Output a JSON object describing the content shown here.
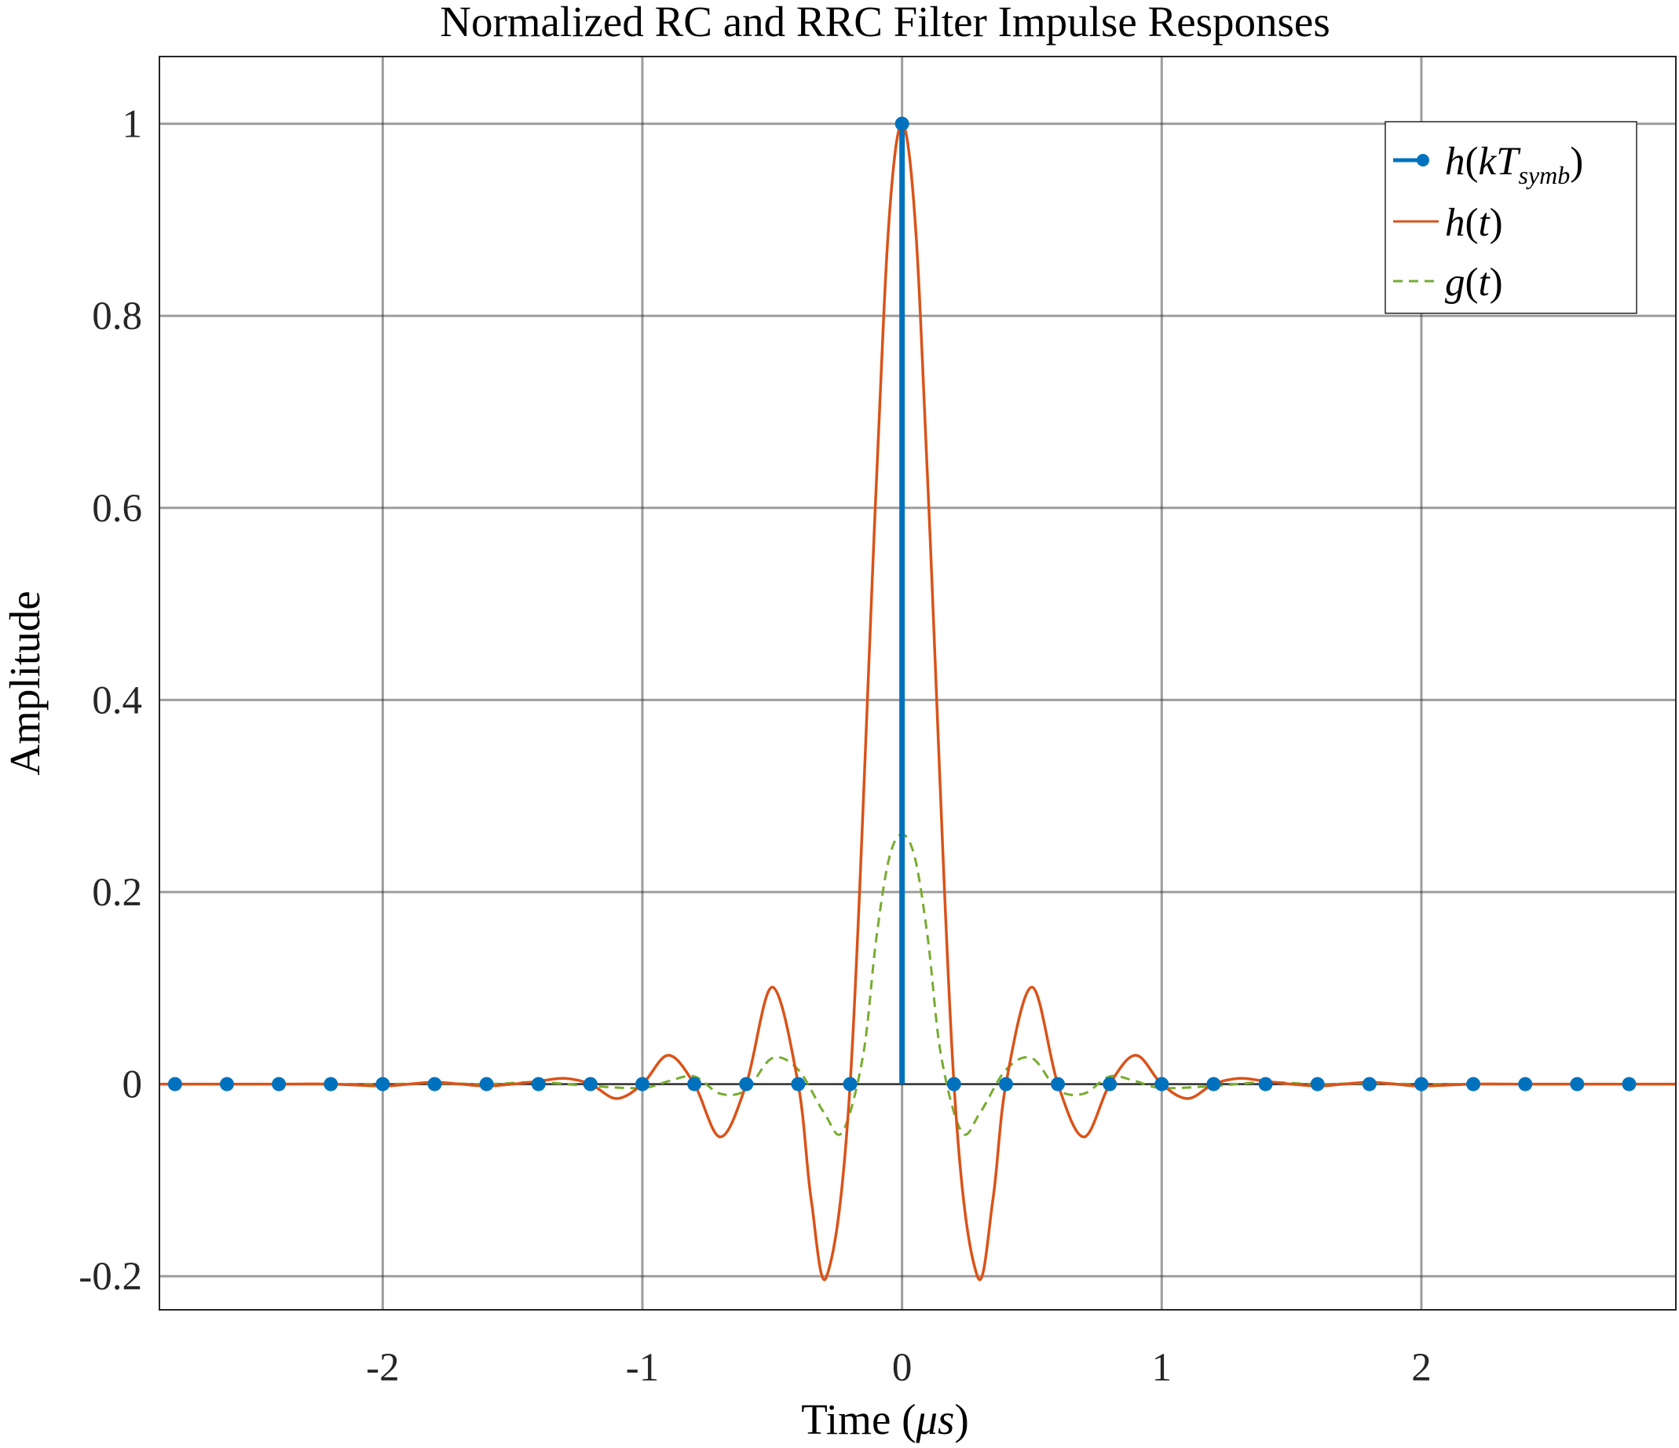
{
  "chart_data": {
    "type": "line",
    "title": "Normalized RC and RRC Filter Impulse Responses",
    "xlabel_text": "Time (",
    "xlabel_unit": "μs",
    "xlabel_close": ")",
    "ylabel": "Amplitude",
    "xlim": [
      -2.86,
      2.98
    ],
    "ylim": [
      -0.235,
      1.07
    ],
    "xticks": [
      -2,
      -1,
      0,
      1,
      2
    ],
    "xtick_labels": [
      "-2",
      "-1",
      "0",
      "1",
      "2"
    ],
    "yticks": [
      -0.2,
      0,
      0.2,
      0.4,
      0.6,
      0.8,
      1
    ],
    "ytick_labels": [
      "-0.2",
      "0",
      "0.2",
      "0.4",
      "0.6",
      "0.8",
      "1"
    ],
    "grid": true,
    "legend_position": "top-right",
    "series": [
      {
        "name": "h(kT_symb)",
        "legend": {
          "h": "h",
          "open": "(",
          "k": "kT",
          "sub": "symb",
          "close": ")"
        },
        "kind": "stem",
        "color": "#0072BD",
        "x": [
          -2.8,
          -2.6,
          -2.4,
          -2.2,
          -2.0,
          -1.8,
          -1.6,
          -1.4,
          -1.2,
          -1.0,
          -0.8,
          -0.6,
          -0.4,
          -0.2,
          0.0,
          0.2,
          0.4,
          0.6,
          0.8,
          1.0,
          1.2,
          1.4,
          1.6,
          1.8,
          2.0,
          2.2,
          2.4,
          2.6,
          2.8
        ],
        "y": [
          0,
          0,
          0,
          0,
          0,
          0,
          0,
          0,
          0,
          0,
          0,
          0,
          0,
          0,
          1,
          0,
          0,
          0,
          0,
          0,
          0,
          0,
          0,
          0,
          0,
          0,
          0,
          0,
          0
        ]
      },
      {
        "name": "h(t)",
        "legend": {
          "h": "h",
          "open": "(",
          "k": "t",
          "sub": "",
          "close": ")"
        },
        "kind": "line",
        "color": "#D95319",
        "x": [
          -2.86,
          -2.6,
          -2.4,
          -2.2,
          -2.0,
          -1.9,
          -1.8,
          -1.7,
          -1.6,
          -1.5,
          -1.4,
          -1.3,
          -1.2,
          -1.1,
          -1.0,
          -0.9,
          -0.8,
          -0.7,
          -0.6,
          -0.5,
          -0.4,
          -0.35,
          -0.29,
          -0.2,
          -0.1,
          -0.05,
          0.0,
          0.05,
          0.1,
          0.2,
          0.29,
          0.35,
          0.4,
          0.5,
          0.6,
          0.7,
          0.8,
          0.9,
          1.0,
          1.1,
          1.2,
          1.3,
          1.4,
          1.5,
          1.6,
          1.7,
          1.8,
          1.9,
          2.0,
          2.2,
          2.4,
          2.6,
          2.98
        ],
        "y": [
          0,
          0,
          0,
          0,
          -0.002,
          0,
          0.002,
          0,
          -0.002,
          0,
          0.003,
          0.006,
          0,
          -0.015,
          0,
          0.03,
          0,
          -0.055,
          0,
          0.101,
          0,
          -0.12,
          -0.2,
          0,
          0.62,
          0.9,
          1.0,
          0.9,
          0.62,
          0,
          -0.2,
          -0.12,
          0,
          0.101,
          0,
          -0.055,
          0,
          0.03,
          0,
          -0.015,
          0,
          0.006,
          0.003,
          0,
          -0.002,
          0,
          0.002,
          0,
          -0.002,
          0,
          0,
          0,
          0
        ]
      },
      {
        "name": "g(t)",
        "legend": {
          "h": "g",
          "open": "(",
          "k": "t",
          "sub": "",
          "close": ")"
        },
        "kind": "dashed",
        "color": "#77AC30",
        "x": [
          -2.86,
          -2.4,
          -2.0,
          -1.8,
          -1.6,
          -1.4,
          -1.2,
          -1.0,
          -0.9,
          -0.8,
          -0.7,
          -0.6,
          -0.5,
          -0.4,
          -0.3,
          -0.23,
          -0.15,
          -0.1,
          -0.05,
          0.0,
          0.05,
          0.1,
          0.15,
          0.23,
          0.3,
          0.4,
          0.5,
          0.6,
          0.7,
          0.8,
          0.9,
          1.0,
          1.2,
          1.4,
          1.6,
          1.8,
          2.0,
          2.4,
          2.98
        ],
        "y": [
          0,
          0,
          0,
          0.001,
          0,
          0.002,
          -0.002,
          -0.004,
          0.003,
          0.008,
          -0.01,
          -0.006,
          0.027,
          0.015,
          -0.03,
          -0.05,
          0.03,
          0.15,
          0.235,
          0.26,
          0.235,
          0.15,
          0.03,
          -0.05,
          -0.03,
          0.015,
          0.027,
          -0.006,
          -0.01,
          0.008,
          0.003,
          -0.004,
          -0.002,
          0.002,
          0,
          0.001,
          0,
          0,
          0
        ]
      }
    ]
  }
}
